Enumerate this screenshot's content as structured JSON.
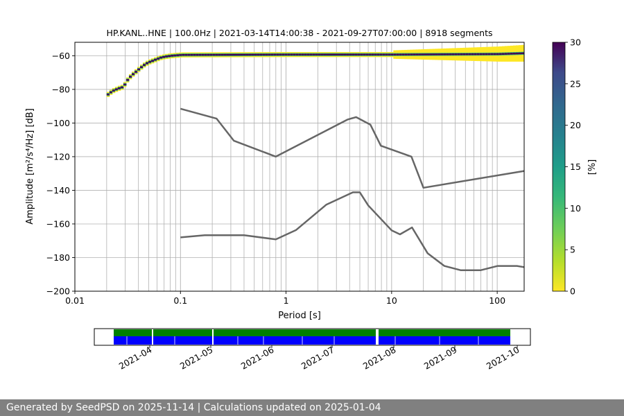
{
  "footer": {
    "text": "Generated by SeedPSD on 2025-11-14 | Calculations updated on 2025-01-04"
  },
  "chart_data": [
    {
      "type": "heatmap",
      "title": "HP.KANL..HNE | 100.0Hz | 2021-03-14T14:00:38 - 2021-09-27T07:00:00 | 8918 segments",
      "xlabel": "Period [s]",
      "ylabel": "Amplitude [m²/s⁴/Hz] [dB]",
      "x_scale": "log",
      "xlim": [
        0.01,
        180
      ],
      "ylim": [
        -200,
        -52
      ],
      "x_ticks": [
        {
          "value": 0.01,
          "label": "0.01"
        },
        {
          "value": 0.1,
          "label": "0.1"
        },
        {
          "value": 1,
          "label": "1"
        },
        {
          "value": 10,
          "label": "10"
        },
        {
          "value": 100,
          "label": "100"
        }
      ],
      "y_ticks": [
        -200,
        -180,
        -160,
        -140,
        -120,
        -100,
        -80,
        -60
      ],
      "grid": true,
      "colorbar": {
        "label": "[%]",
        "min": 0,
        "max": 30,
        "ticks": [
          0,
          5,
          10,
          15,
          20,
          25,
          30
        ],
        "colormap": "viridis_r"
      },
      "psd_mode_curve": [
        {
          "x": 0.02,
          "y": -83
        },
        {
          "x": 0.022,
          "y": -81
        },
        {
          "x": 0.025,
          "y": -79.5
        },
        {
          "x": 0.028,
          "y": -78.5
        },
        {
          "x": 0.03,
          "y": -75
        },
        {
          "x": 0.033,
          "y": -72
        },
        {
          "x": 0.036,
          "y": -70
        },
        {
          "x": 0.04,
          "y": -67.5
        },
        {
          "x": 0.044,
          "y": -65.5
        },
        {
          "x": 0.048,
          "y": -64
        },
        {
          "x": 0.053,
          "y": -63
        },
        {
          "x": 0.058,
          "y": -62
        },
        {
          "x": 0.064,
          "y": -61
        },
        {
          "x": 0.07,
          "y": -60.5
        },
        {
          "x": 0.08,
          "y": -60
        },
        {
          "x": 0.1,
          "y": -59.5
        },
        {
          "x": 1,
          "y": -59.3
        },
        {
          "x": 10,
          "y": -59.3
        },
        {
          "x": 100,
          "y": -59
        },
        {
          "x": 180,
          "y": -58.5
        }
      ],
      "series": [
        {
          "name": "",
          "color": "#666666",
          "points": [
            {
              "x": 0.1,
              "y": -91.5
            },
            {
              "x": 0.22,
              "y": -97.4
            },
            {
              "x": 0.32,
              "y": -110.5
            },
            {
              "x": 0.8,
              "y": -120
            },
            {
              "x": 3.8,
              "y": -98
            },
            {
              "x": 4.6,
              "y": -96.5
            },
            {
              "x": 6.3,
              "y": -101
            },
            {
              "x": 7.9,
              "y": -113.5
            },
            {
              "x": 15.4,
              "y": -120
            },
            {
              "x": 20,
              "y": -138.5
            },
            {
              "x": 180,
              "y": -128.5
            }
          ]
        },
        {
          "name": "",
          "color": "#666666",
          "points": [
            {
              "x": 0.1,
              "y": -168
            },
            {
              "x": 0.17,
              "y": -166.7
            },
            {
              "x": 0.4,
              "y": -166.7
            },
            {
              "x": 0.8,
              "y": -169.2
            },
            {
              "x": 1.24,
              "y": -163.7
            },
            {
              "x": 2.4,
              "y": -148.6
            },
            {
              "x": 4.3,
              "y": -141.2
            },
            {
              "x": 5.0,
              "y": -141.2
            },
            {
              "x": 6.0,
              "y": -149
            },
            {
              "x": 10,
              "y": -163.8
            },
            {
              "x": 12,
              "y": -166.2
            },
            {
              "x": 15.6,
              "y": -162.1
            },
            {
              "x": 21.9,
              "y": -177.4
            },
            {
              "x": 31.6,
              "y": -185
            },
            {
              "x": 45,
              "y": -187.5
            },
            {
              "x": 70,
              "y": -187.5
            },
            {
              "x": 101,
              "y": -185
            },
            {
              "x": 154,
              "y": -185
            },
            {
              "x": 180,
              "y": -185.7
            }
          ]
        }
      ]
    },
    {
      "type": "timeline",
      "x_ticks": [
        "2021-04",
        "2021-05",
        "2021-06",
        "2021-07",
        "2021-08",
        "2021-09",
        "2021-10"
      ],
      "series": [
        {
          "name": "",
          "color": "#008000"
        },
        {
          "name": "",
          "color": "#0000ff"
        }
      ]
    }
  ]
}
